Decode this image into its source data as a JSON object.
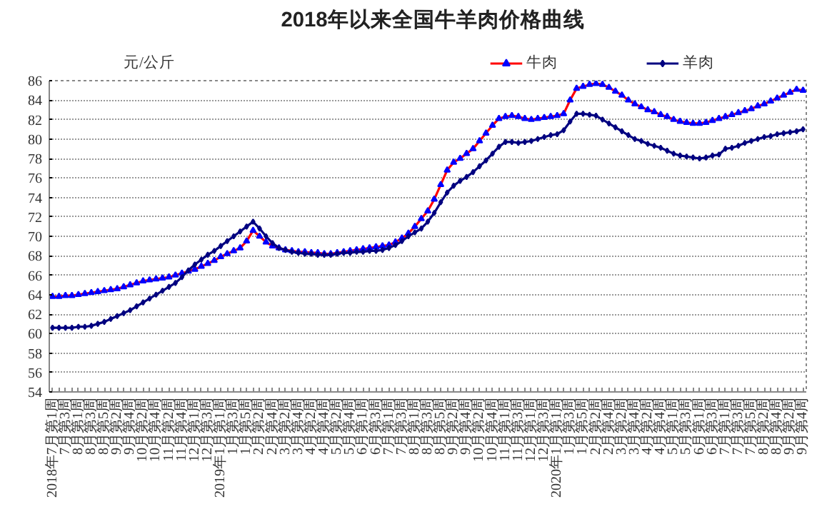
{
  "chart_data": {
    "type": "line",
    "title": "2018年以来全国牛羊肉价格曲线",
    "ylabel": "元/公斤",
    "categories": [
      "2018年7月第1周",
      null,
      "7月第3周",
      null,
      "8月第1周",
      null,
      "8月第3周",
      null,
      "8月第5周",
      null,
      "9月第2周",
      null,
      "9月第4周",
      null,
      "10月第2周",
      null,
      "10月第4周",
      null,
      "11月第2周",
      null,
      "11月第4周",
      null,
      "12月第1周",
      null,
      "12月第3周",
      null,
      "2019年1月第1周",
      null,
      "1月第3周",
      null,
      "1月第5周",
      null,
      "2月第2周",
      null,
      "2月第4周",
      null,
      "3月第2周",
      null,
      "3月第4周",
      null,
      "4月第2周",
      null,
      "4月第4周",
      null,
      "5月第2周",
      null,
      "5月第4周",
      null,
      "6月第1周",
      null,
      "6月第3周",
      null,
      "7月第1周",
      null,
      "7月第3周",
      null,
      "8月第1周",
      null,
      "8月第3周",
      null,
      "8月第5周",
      null,
      "9月第2周",
      null,
      "9月第4周",
      null,
      "10月第2周",
      null,
      "10月第4周",
      null,
      "11月第1周",
      null,
      "11月第3周",
      null,
      "12月第1周",
      null,
      "12月第3周",
      null,
      "2020年1月第1周",
      null,
      "1月第3周",
      null,
      "1月第5周",
      null,
      "2月第2周",
      null,
      "2月第4周",
      null,
      "3月第2周",
      null,
      "3月第4周",
      null,
      "4月第2周",
      null,
      "4月第4周",
      null,
      "5月第1周",
      null,
      "5月第3周",
      null,
      "6月第1周",
      null,
      "6月第3周",
      null,
      "7月第1周",
      null,
      "7月第3周",
      null,
      "7月第5周",
      null,
      "8月第2周",
      null,
      "8月第4周",
      null,
      "9月第2周",
      null,
      "9月第4周"
    ],
    "series": [
      {
        "name": "牛肉",
        "color": "#ff0000",
        "colors": [
          "#0000ff",
          "#0000ff",
          "#0000ff",
          "#0000ff",
          "#0000ff",
          "#0000ff",
          "#0000ff",
          "#0000ff",
          "#0000ff",
          "#0000ff",
          "#0000ff",
          "#0000ff",
          "#0000ff",
          "#0000ff",
          "#0000ff",
          "#0000ff",
          "#0000ff",
          "#0000ff",
          "#0000ff",
          "#0000ff",
          "#0000ff",
          "#0000ff",
          "#0000ff",
          "#0000ff",
          "#0000ff",
          "#0000ff",
          "#0000ff",
          "#0000ff",
          "#0000ff",
          "#0000ff",
          "#0000ff",
          "#0000ff",
          "#0000ff",
          "#0000ff",
          "#0000ff",
          "#0000ff",
          "#0000ff",
          "#0000ff",
          "#0000ff",
          "#0000ff",
          "#0000ff",
          "#0000ff",
          "#0000ff",
          "#0000ff",
          "#0000ff",
          "#0000ff",
          "#0000ff",
          "#0000ff",
          "#0000ff",
          "#0000ff",
          "#0000ff",
          "#0000ff",
          "#0000ff",
          "#0000ff",
          "#0000ff",
          "#0000ff",
          "#0000ff",
          "#0000ff",
          "#0000ff",
          "#0000ff",
          "#0000ff",
          "#0000ff",
          "#0000ff",
          "#0000ff",
          "#0000ff",
          "#0000ff",
          "#0000ff",
          "#0000ff",
          "#0000ff",
          "#0000ff",
          "#0000ff",
          "#0000ff",
          "#0000ff",
          "#0000ff",
          "#0000ff",
          "#0000ff",
          "#0000ff",
          "#0000ff",
          "#0000ff",
          "#0000ff",
          "#0000ff",
          "#0000ff",
          "#0000ff",
          "#0000ff",
          "#0000ff",
          "#0000ff",
          "#0000ff",
          "#0000ff",
          "#0000ff",
          "#0000ff",
          "#0000ff",
          "#0000ff",
          "#0000ff",
          "#0000ff",
          "#0000ff",
          "#0000ff",
          "#0000ff",
          "#0000ff",
          "#0000ff",
          "#0000ff",
          "#0000ff",
          "#0000ff",
          "#0000ff",
          "#0000ff",
          "#0000ff",
          "#0000ff",
          "#0000ff",
          "#0000ff",
          "#0000ff",
          "#0000ff",
          "#0000ff",
          "#0000ff",
          "#0000ff",
          "#0000ff",
          "#0000ff",
          "#0000ff",
          "#0000ff"
        ],
        "marker": "triangle",
        "values": [
          63.8,
          63.8,
          63.9,
          63.9,
          64.0,
          64.1,
          64.2,
          64.3,
          64.4,
          64.5,
          64.6,
          64.8,
          65.0,
          65.2,
          65.4,
          65.5,
          65.6,
          65.7,
          65.8,
          66.0,
          66.2,
          66.4,
          66.6,
          66.9,
          67.2,
          67.5,
          67.9,
          68.2,
          68.5,
          68.8,
          69.5,
          70.6,
          70.0,
          69.4,
          69.0,
          68.8,
          68.6,
          68.5,
          68.4,
          68.4,
          68.3,
          68.3,
          68.2,
          68.2,
          68.3,
          68.4,
          68.5,
          68.6,
          68.7,
          68.8,
          68.9,
          69.0,
          69.1,
          69.4,
          69.8,
          70.3,
          71.0,
          71.8,
          72.6,
          73.8,
          75.3,
          76.8,
          77.6,
          78.0,
          78.5,
          79.0,
          79.8,
          80.6,
          81.4,
          82.1,
          82.3,
          82.4,
          82.3,
          82.1,
          82.0,
          82.1,
          82.2,
          82.3,
          82.4,
          82.6,
          84.0,
          85.2,
          85.4,
          85.6,
          85.7,
          85.6,
          85.3,
          84.9,
          84.5,
          84.0,
          83.6,
          83.3,
          83.0,
          82.8,
          82.5,
          82.3,
          82.0,
          81.8,
          81.7,
          81.6,
          81.6,
          81.7,
          81.9,
          82.1,
          82.3,
          82.5,
          82.7,
          82.9,
          83.1,
          83.4,
          83.6,
          83.9,
          84.2,
          84.5,
          84.8,
          85.1,
          85.0
        ]
      },
      {
        "name": "羊肉",
        "color": "#000080",
        "marker": "diamond",
        "values": [
          60.6,
          60.6,
          60.6,
          60.6,
          60.7,
          60.7,
          60.8,
          61.0,
          61.2,
          61.5,
          61.8,
          62.1,
          62.4,
          62.8,
          63.2,
          63.6,
          64.0,
          64.4,
          64.8,
          65.2,
          65.8,
          66.5,
          67.1,
          67.6,
          68.1,
          68.5,
          69.0,
          69.5,
          70.0,
          70.5,
          71.0,
          71.5,
          70.8,
          70.0,
          69.3,
          68.8,
          68.6,
          68.4,
          68.3,
          68.2,
          68.2,
          68.1,
          68.1,
          68.1,
          68.2,
          68.3,
          68.3,
          68.4,
          68.4,
          68.5,
          68.5,
          68.6,
          68.8,
          69.1,
          69.5,
          70.0,
          70.4,
          70.8,
          71.5,
          72.4,
          73.5,
          74.5,
          75.2,
          75.7,
          76.1,
          76.6,
          77.2,
          77.8,
          78.5,
          79.2,
          79.7,
          79.7,
          79.6,
          79.7,
          79.8,
          80.0,
          80.2,
          80.4,
          80.5,
          80.9,
          81.8,
          82.6,
          82.6,
          82.5,
          82.4,
          82.0,
          81.6,
          81.2,
          80.8,
          80.4,
          80.0,
          79.8,
          79.5,
          79.3,
          79.1,
          78.8,
          78.5,
          78.3,
          78.2,
          78.1,
          78.0,
          78.1,
          78.3,
          78.4,
          79.0,
          79.1,
          79.3,
          79.6,
          79.8,
          80.0,
          80.2,
          80.3,
          80.5,
          80.6,
          80.7,
          80.8,
          81.0
        ]
      }
    ],
    "ylim": [
      54,
      86
    ],
    "yticks": [
      54,
      56,
      58,
      60,
      62,
      64,
      66,
      68,
      70,
      72,
      74,
      76,
      78,
      80,
      82,
      84,
      86
    ],
    "grid": "y",
    "legend": "top right",
    "line_style": "solid"
  }
}
